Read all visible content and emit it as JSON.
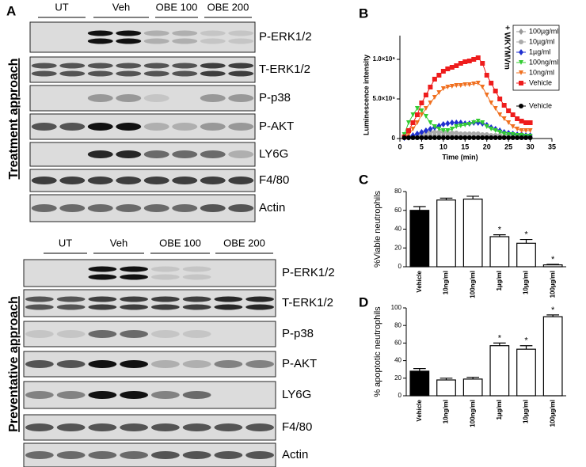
{
  "panel_labels": [
    "A",
    "B",
    "C",
    "D"
  ],
  "blots": [
    {
      "title": "Treatment approach",
      "groups": [
        "UT",
        "Veh",
        "OBE 100",
        "OBE 200"
      ],
      "rows": [
        "P-ERK1/2",
        "T-ERK1/2",
        "P-p38",
        "P-AKT",
        "LY6G",
        "F4/80",
        "Actin"
      ]
    },
    {
      "title": "Preventative approach",
      "groups": [
        "UT",
        "Veh",
        "OBE 100",
        "OBE 200"
      ],
      "rows": [
        "P-ERK1/2",
        "T-ERK1/2",
        "P-p38",
        "P-AKT",
        "LY6G",
        "F4/80",
        "Actin"
      ]
    }
  ],
  "chart_data": [
    {
      "type": "line",
      "xlabel": "Time (min)",
      "ylabel": "Luminescence intensity",
      "x": [
        1,
        2,
        3,
        4,
        5,
        6,
        7,
        8,
        9,
        10,
        11,
        12,
        13,
        14,
        15,
        16,
        17,
        18,
        19,
        20,
        21,
        22,
        23,
        24,
        25,
        26,
        27,
        28,
        29,
        30
      ],
      "xlim": [
        0,
        35
      ],
      "xticks": [
        0,
        5,
        10,
        15,
        20,
        25,
        30,
        35
      ],
      "ylim": [
        0,
        1300000
      ],
      "yticks": [
        0,
        {
          "value": 500000,
          "label": "5.0×10⁵"
        },
        {
          "value": 1000000,
          "label": "1.0×10⁶"
        }
      ],
      "legend_title": "+ WKYMVm",
      "series": [
        {
          "name": "100µg/ml",
          "color": "#999999",
          "marker": "diamond",
          "values": [
            10000.0,
            10000.0,
            20000.0,
            30000.0,
            40000.0,
            40000.0,
            40000.0,
            40000.0,
            40000.0,
            40000.0,
            40000.0,
            40000.0,
            30000.0,
            30000.0,
            30000.0,
            30000.0,
            30000.0,
            30000.0,
            30000.0,
            30000.0,
            20000.0,
            20000.0,
            20000.0,
            20000.0,
            20000.0,
            20000.0,
            20000.0,
            20000.0,
            20000.0,
            20000.0
          ]
        },
        {
          "name": "10µg/ml",
          "color": "#aaaaaa",
          "marker": "circle",
          "values": [
            10000.0,
            20000.0,
            30000.0,
            50000.0,
            70000.0,
            80000.0,
            80000.0,
            80000.0,
            80000.0,
            80000.0,
            70000.0,
            70000.0,
            70000.0,
            60000.0,
            60000.0,
            60000.0,
            60000.0,
            60000.0,
            50000.0,
            50000.0,
            40000.0,
            40000.0,
            40000.0,
            30000.0,
            30000.0,
            30000.0,
            20000.0,
            20000.0,
            20000.0,
            20000.0
          ]
        },
        {
          "name": "1µg/ml",
          "color": "#1f2fd0",
          "marker": "diamond",
          "values": [
            10000.0,
            20000.0,
            40000.0,
            60000.0,
            80000.0,
            100000.0,
            120000.0,
            140000.0,
            160000.0,
            180000.0,
            190000.0,
            200000.0,
            200000.0,
            200000.0,
            190000.0,
            190000.0,
            200000.0,
            200000.0,
            190000.0,
            170000.0,
            140000.0,
            120000.0,
            100000.0,
            80000.0,
            70000.0,
            60000.0,
            50000.0,
            50000.0,
            40000.0,
            40000.0
          ]
        },
        {
          "name": "100ng/ml",
          "color": "#33cc33",
          "marker": "triangle",
          "values": [
            50000.0,
            200000.0,
            300000.0,
            380000.0,
            350000.0,
            280000.0,
            200000.0,
            150000.0,
            120000.0,
            100000.0,
            100000.0,
            120000.0,
            150000.0,
            160000.0,
            170000.0,
            180000.0,
            200000.0,
            220000.0,
            200000.0,
            150000.0,
            120000.0,
            100000.0,
            80000.0,
            60000.0,
            50000.0,
            50000.0,
            40000.0,
            40000.0,
            30000.0,
            30000.0
          ]
        },
        {
          "name": "10ng/ml",
          "color": "#f07020",
          "marker": "triangle",
          "values": [
            10000.0,
            50000.0,
            120000.0,
            200000.0,
            300000.0,
            380000.0,
            450000.0,
            520000.0,
            580000.0,
            630000.0,
            650000.0,
            660000.0,
            670000.0,
            670000.0,
            680000.0,
            680000.0,
            690000.0,
            700000.0,
            650000.0,
            550000.0,
            450000.0,
            380000.0,
            300000.0,
            250000.0,
            200000.0,
            150000.0,
            120000.0,
            100000.0,
            100000.0,
            100000.0
          ]
        },
        {
          "name": "Vehicle",
          "color": "#ee1c1c",
          "marker": "square",
          "values": [
            20000.0,
            100000.0,
            200000.0,
            300000.0,
            450000.0,
            550000.0,
            650000.0,
            750000.0,
            800000.0,
            850000.0,
            880000.0,
            900000.0,
            920000.0,
            950000.0,
            970000.0,
            980000.0,
            1000000.0,
            1020000.0,
            950000.0,
            800000.0,
            700000.0,
            600000.0,
            500000.0,
            420000.0,
            350000.0,
            300000.0,
            250000.0,
            220000.0,
            200000.0,
            200000.0
          ]
        },
        {
          "name": "Vehicle",
          "color": "#000000",
          "marker": "circle",
          "values": [
            10000.0,
            10000.0,
            10000.0,
            10000.0,
            10000.0,
            10000.0,
            10000.0,
            10000.0,
            10000.0,
            10000.0,
            10000.0,
            10000.0,
            10000.0,
            10000.0,
            10000.0,
            10000.0,
            10000.0,
            10000.0,
            10000.0,
            10000.0,
            10000.0,
            10000.0,
            10000.0,
            10000.0,
            10000.0,
            10000.0,
            10000.0,
            10000.0,
            10000.0,
            10000.0
          ]
        }
      ]
    },
    {
      "type": "bar",
      "ylabel": "%Viable neutrophils",
      "categories": [
        "Vehicle",
        "10ng/ml",
        "100ng/ml",
        "1µg/ml",
        "10µg/ml",
        "100µg/ml"
      ],
      "values": [
        60,
        71,
        72,
        32,
        25,
        2
      ],
      "errors": [
        4,
        2,
        3,
        2,
        4,
        0.5
      ],
      "colors": [
        "#000000",
        "#ffffff",
        "#ffffff",
        "#ffffff",
        "#ffffff",
        "#ffffff"
      ],
      "significance": [
        null,
        null,
        null,
        "*",
        "*",
        "*"
      ],
      "ylim": [
        0,
        80
      ],
      "yticks": [
        0,
        20,
        40,
        60,
        80
      ]
    },
    {
      "type": "bar",
      "ylabel": "% apoptotic neutrophils",
      "categories": [
        "Vehicle",
        "10ng/ml",
        "100ng/ml",
        "1µg/ml",
        "10µg/ml",
        "100µg/ml"
      ],
      "values": [
        28,
        18,
        19,
        57,
        53,
        90
      ],
      "errors": [
        3,
        2,
        2,
        3,
        4,
        2
      ],
      "colors": [
        "#000000",
        "#ffffff",
        "#ffffff",
        "#ffffff",
        "#ffffff",
        "#ffffff"
      ],
      "significance": [
        null,
        null,
        null,
        "*",
        "*",
        "*"
      ],
      "ylim": [
        0,
        100
      ],
      "yticks": [
        0,
        20,
        40,
        60,
        80,
        100
      ]
    }
  ]
}
